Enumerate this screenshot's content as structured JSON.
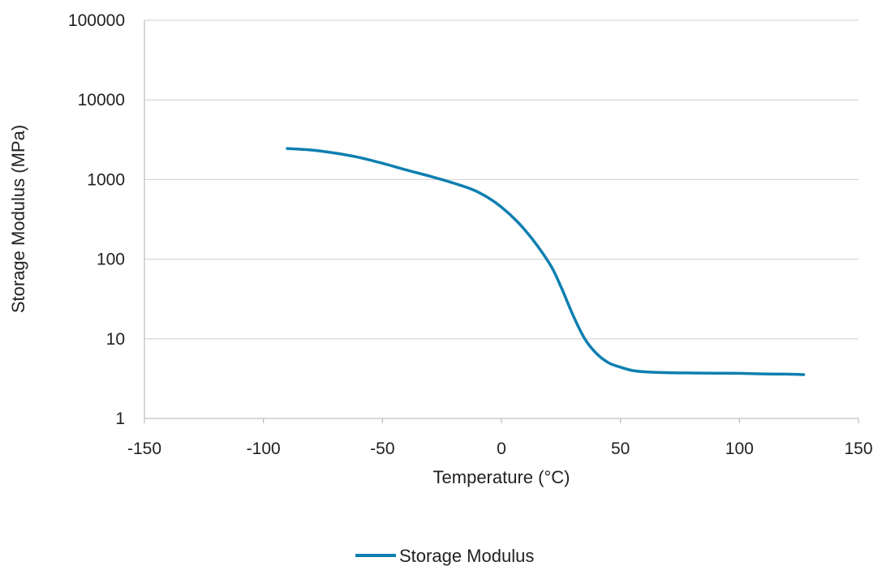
{
  "chart_data": {
    "type": "line",
    "xlabel": "Temperature (°C)",
    "ylabel": "Storage Modulus (MPa)",
    "xlim": [
      -150,
      150
    ],
    "ylim": [
      1,
      100000
    ],
    "yscale": "log",
    "x_ticks": [
      "-150",
      "-100",
      "-50",
      "0",
      "50",
      "100",
      "150"
    ],
    "y_ticks": [
      "1",
      "10",
      "100",
      "1000",
      "10000",
      "100000"
    ],
    "grid": "horizontal",
    "legend_position": "bottom",
    "series": [
      {
        "name": "Storage Modulus",
        "color": "#0e7fb0",
        "x": [
          -90,
          -80,
          -70,
          -60,
          -50,
          -40,
          -30,
          -20,
          -10,
          0,
          10,
          20,
          25,
          30,
          35,
          40,
          45,
          50,
          55,
          60,
          70,
          80,
          90,
          100,
          110,
          120,
          127
        ],
        "y": [
          2450,
          2350,
          2150,
          1900,
          1600,
          1320,
          1100,
          900,
          700,
          450,
          230,
          90,
          45,
          20,
          10,
          6.5,
          5.0,
          4.4,
          4.0,
          3.85,
          3.75,
          3.72,
          3.7,
          3.68,
          3.62,
          3.6,
          3.55
        ]
      }
    ]
  }
}
